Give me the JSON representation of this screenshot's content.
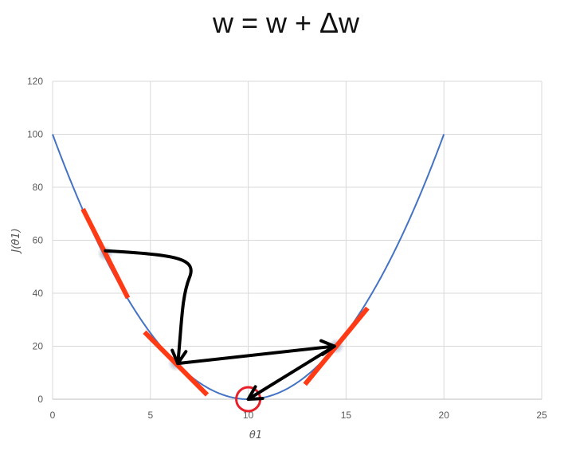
{
  "page": {
    "title": "w = w + Δw"
  },
  "chart_data": {
    "type": "line",
    "title": "w = w + Δw",
    "xlabel": "θ1",
    "ylabel": "J(θ1)",
    "xlim": [
      0,
      25
    ],
    "ylim": [
      0,
      120
    ],
    "x_ticks": [
      0,
      5,
      10,
      15,
      20,
      25
    ],
    "y_ticks": [
      0,
      20,
      40,
      60,
      80,
      100,
      120
    ],
    "grid": true,
    "series": [
      {
        "function": "(x - 10)^2",
        "x_range": [
          0,
          20
        ],
        "color": "#4472C4"
      }
    ],
    "tangents": [
      {
        "point": [
          2.7,
          55
        ],
        "slope": -14.6,
        "half_width": 1.15,
        "color": "#FF3A14"
      },
      {
        "point": [
          6.3,
          13.5
        ],
        "slope": -7.4,
        "half_width": 1.6,
        "color": "#FF3A14"
      },
      {
        "point": [
          14.5,
          20
        ],
        "slope": 9.0,
        "half_width": 1.6,
        "color": "#FF3A14"
      }
    ],
    "steps": [
      {
        "from": [
          2.7,
          56
        ],
        "to": [
          6.4,
          13.5
        ],
        "via": [
          7,
          46
        ]
      },
      {
        "from": [
          6.4,
          13.5
        ],
        "to": [
          14.4,
          20
        ]
      },
      {
        "from": [
          14.4,
          20
        ],
        "to": [
          10,
          0
        ]
      }
    ],
    "minimum": {
      "point": [
        10,
        0
      ],
      "color": "#E8202A"
    },
    "colors": {
      "curve": "#4472C4",
      "tangent": "#FF3A14",
      "arrow": "#000000",
      "grid": "#D9D9D9",
      "minimum_circle": "#E8202A"
    }
  }
}
